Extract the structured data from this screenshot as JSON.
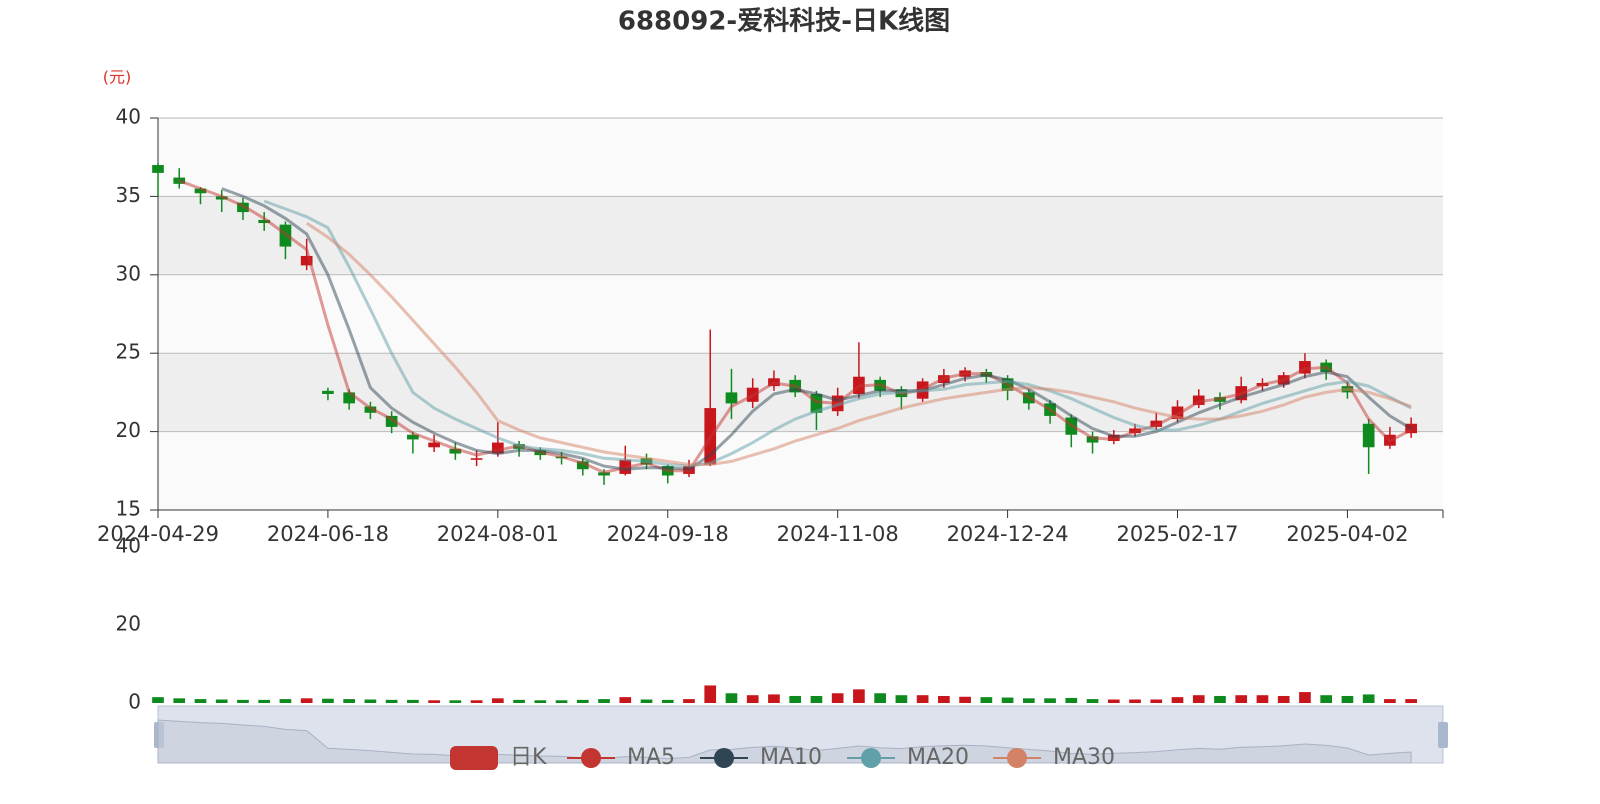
{
  "chart_data": {
    "type": "candlestick",
    "title": "688092-爱科科技-日K线图",
    "y_axis_label": "(元)",
    "categories": [
      "2024-04-29",
      null,
      null,
      null,
      null,
      null,
      null,
      null,
      "2024-06-18",
      null,
      null,
      null,
      null,
      null,
      null,
      null,
      "2024-08-01",
      null,
      null,
      null,
      null,
      null,
      null,
      null,
      "2024-09-18",
      null,
      null,
      null,
      null,
      null,
      null,
      null,
      "2024-11-08",
      null,
      null,
      null,
      null,
      null,
      null,
      null,
      "2024-12-24",
      null,
      null,
      null,
      null,
      null,
      null,
      null,
      "2025-02-17",
      null,
      null,
      null,
      null,
      null,
      null,
      null,
      "2025-04-02",
      null,
      null,
      null
    ],
    "ylim": [
      15,
      40
    ],
    "yticks": [
      15,
      20,
      25,
      30,
      35,
      40
    ],
    "grid": true,
    "series": [
      {
        "name": "日K",
        "color": "#c23531",
        "up_color": "#c8161d",
        "down_color": "#0f8a1f",
        "open": [
          37.0,
          36.2,
          35.5,
          35.0,
          34.6,
          33.5,
          33.2,
          30.6,
          22.6,
          22.5,
          21.6,
          21.0,
          19.8,
          19.0,
          18.9,
          18.2,
          18.6,
          19.2,
          18.8,
          18.4,
          18.1,
          17.4,
          17.3,
          18.3,
          17.8,
          17.3,
          17.9,
          22.5,
          21.9,
          22.9,
          23.3,
          22.4,
          21.3,
          22.4,
          23.3,
          22.7,
          22.1,
          23.1,
          23.5,
          23.8,
          23.4,
          22.5,
          21.8,
          20.9,
          19.7,
          19.4,
          19.9,
          20.3,
          20.8,
          21.7,
          22.2,
          22.0,
          22.9,
          23.0,
          23.7,
          24.4,
          22.9,
          20.5,
          19.1,
          19.9
        ],
        "close": [
          36.5,
          35.8,
          35.2,
          34.8,
          34.0,
          33.3,
          31.8,
          31.2,
          22.4,
          21.8,
          21.2,
          20.3,
          19.5,
          19.3,
          18.6,
          18.3,
          19.3,
          18.9,
          18.5,
          18.3,
          17.6,
          17.2,
          18.2,
          17.9,
          17.2,
          17.8,
          21.5,
          21.8,
          22.8,
          23.4,
          22.5,
          21.2,
          22.3,
          23.5,
          22.6,
          22.2,
          23.2,
          23.6,
          23.9,
          23.5,
          22.6,
          21.8,
          21.0,
          19.8,
          19.3,
          19.8,
          20.2,
          20.7,
          21.6,
          22.3,
          21.9,
          22.9,
          23.1,
          23.6,
          24.5,
          23.8,
          22.5,
          19.0,
          19.8,
          20.5
        ],
        "low": [
          35.0,
          35.5,
          34.5,
          34.0,
          33.5,
          32.8,
          31.0,
          30.3,
          22.0,
          21.4,
          20.8,
          19.9,
          18.6,
          18.7,
          18.2,
          17.8,
          18.4,
          18.4,
          18.2,
          17.9,
          17.2,
          16.6,
          17.2,
          17.6,
          16.7,
          17.1,
          17.8,
          20.8,
          21.5,
          22.6,
          22.2,
          20.1,
          21.0,
          22.1,
          22.2,
          21.4,
          21.9,
          22.8,
          23.2,
          23.1,
          22.0,
          21.4,
          20.5,
          19.0,
          18.6,
          19.2,
          19.7,
          20.1,
          20.6,
          21.5,
          21.4,
          21.8,
          22.6,
          22.8,
          23.4,
          23.3,
          22.1,
          17.3,
          18.9,
          19.6
        ],
        "high": [
          37.1,
          36.8,
          35.6,
          35.4,
          34.9,
          34.0,
          33.4,
          32.3,
          22.8,
          22.7,
          21.9,
          21.3,
          20.0,
          19.8,
          19.3,
          18.8,
          20.6,
          19.4,
          19.0,
          18.7,
          18.3,
          17.6,
          19.1,
          18.6,
          17.9,
          18.2,
          26.5,
          24.0,
          23.4,
          23.9,
          23.6,
          22.6,
          22.8,
          25.7,
          23.5,
          22.9,
          23.4,
          24.0,
          24.1,
          24.0,
          23.6,
          22.7,
          22.0,
          21.1,
          20.0,
          20.1,
          20.5,
          21.2,
          22.0,
          22.7,
          22.5,
          23.5,
          23.4,
          23.8,
          25.0,
          24.6,
          23.2,
          20.8,
          20.3,
          20.9
        ]
      },
      {
        "name": "MA5",
        "color": "#c23531",
        "values": [
          null,
          36.0,
          35.5,
          35.0,
          34.4,
          33.6,
          32.6,
          31.6,
          26.8,
          22.5,
          21.5,
          20.8,
          19.9,
          19.4,
          18.9,
          18.5,
          18.8,
          19.1,
          18.7,
          18.4,
          18.0,
          17.4,
          17.7,
          18.0,
          17.5,
          17.5,
          19.6,
          21.6,
          22.3,
          23.1,
          22.9,
          21.9,
          21.8,
          22.9,
          23.0,
          22.4,
          22.7,
          23.4,
          23.7,
          23.7,
          23.0,
          22.2,
          21.4,
          20.4,
          19.6,
          19.5,
          20.0,
          20.4,
          21.1,
          21.9,
          22.1,
          22.4,
          23.0,
          23.3,
          24.0,
          24.1,
          23.1,
          20.8,
          19.4,
          20.1
        ]
      },
      {
        "name": "MA10",
        "color": "#2f4554",
        "values": [
          null,
          null,
          null,
          35.5,
          35.0,
          34.4,
          33.6,
          32.6,
          30.0,
          26.5,
          22.8,
          21.5,
          20.6,
          19.9,
          19.3,
          18.8,
          18.6,
          18.8,
          18.8,
          18.6,
          18.3,
          17.8,
          17.6,
          17.7,
          17.7,
          17.6,
          18.5,
          19.8,
          21.3,
          22.4,
          22.7,
          22.4,
          22.0,
          22.3,
          22.6,
          22.6,
          22.6,
          23.0,
          23.4,
          23.6,
          23.3,
          22.7,
          21.9,
          21.0,
          20.2,
          19.7,
          19.7,
          20.0,
          20.6,
          21.2,
          21.7,
          22.2,
          22.6,
          23.0,
          23.5,
          23.8,
          23.5,
          22.2,
          21.0,
          20.2
        ]
      },
      {
        "name": "MA20",
        "color": "#61a0a8",
        "values": [
          null,
          null,
          null,
          null,
          null,
          34.7,
          34.2,
          33.7,
          33.0,
          30.5,
          27.8,
          25.0,
          22.5,
          21.5,
          20.8,
          20.2,
          19.6,
          19.1,
          18.9,
          18.8,
          18.6,
          18.3,
          18.2,
          18.1,
          17.9,
          17.8,
          18.0,
          18.6,
          19.3,
          20.1,
          20.8,
          21.3,
          21.7,
          22.1,
          22.4,
          22.5,
          22.6,
          22.7,
          23.0,
          23.1,
          23.2,
          23.0,
          22.6,
          22.1,
          21.5,
          20.9,
          20.4,
          20.1,
          20.1,
          20.4,
          20.8,
          21.3,
          21.8,
          22.2,
          22.6,
          23.0,
          23.2,
          22.9,
          22.2,
          21.5
        ]
      },
      {
        "name": "MA30",
        "color": "#d48265",
        "values": [
          null,
          null,
          null,
          null,
          null,
          null,
          null,
          33.3,
          32.4,
          31.3,
          30.0,
          28.6,
          27.1,
          25.6,
          24.1,
          22.5,
          20.7,
          20.1,
          19.6,
          19.3,
          19.0,
          18.7,
          18.5,
          18.3,
          18.1,
          17.9,
          17.9,
          18.1,
          18.5,
          18.9,
          19.4,
          19.8,
          20.2,
          20.7,
          21.1,
          21.5,
          21.8,
          22.1,
          22.3,
          22.5,
          22.7,
          22.8,
          22.7,
          22.5,
          22.2,
          21.9,
          21.5,
          21.2,
          20.9,
          20.8,
          20.8,
          21.0,
          21.3,
          21.7,
          22.2,
          22.5,
          22.7,
          22.5,
          22.1,
          21.6
        ]
      }
    ],
    "volume": {
      "ylim": [
        0,
        40
      ],
      "yticks": [
        0,
        20,
        40
      ],
      "values": [
        1.5,
        1.2,
        1,
        0.9,
        0.8,
        0.8,
        1,
        1.2,
        1.1,
        1,
        0.9,
        0.8,
        0.8,
        0.7,
        0.7,
        0.7,
        1.2,
        0.8,
        0.7,
        0.7,
        0.8,
        1,
        1.5,
        0.9,
        0.8,
        1,
        4.5,
        2.5,
        2,
        2.2,
        1.8,
        1.8,
        2.5,
        3.5,
        2.5,
        2,
        2,
        1.8,
        1.6,
        1.5,
        1.4,
        1.2,
        1.2,
        1.3,
        1,
        0.9,
        0.9,
        0.9,
        1.5,
        2,
        1.8,
        2,
        2,
        1.8,
        2.8,
        2,
        1.8,
        2.2,
        1,
        1
      ]
    }
  }
}
